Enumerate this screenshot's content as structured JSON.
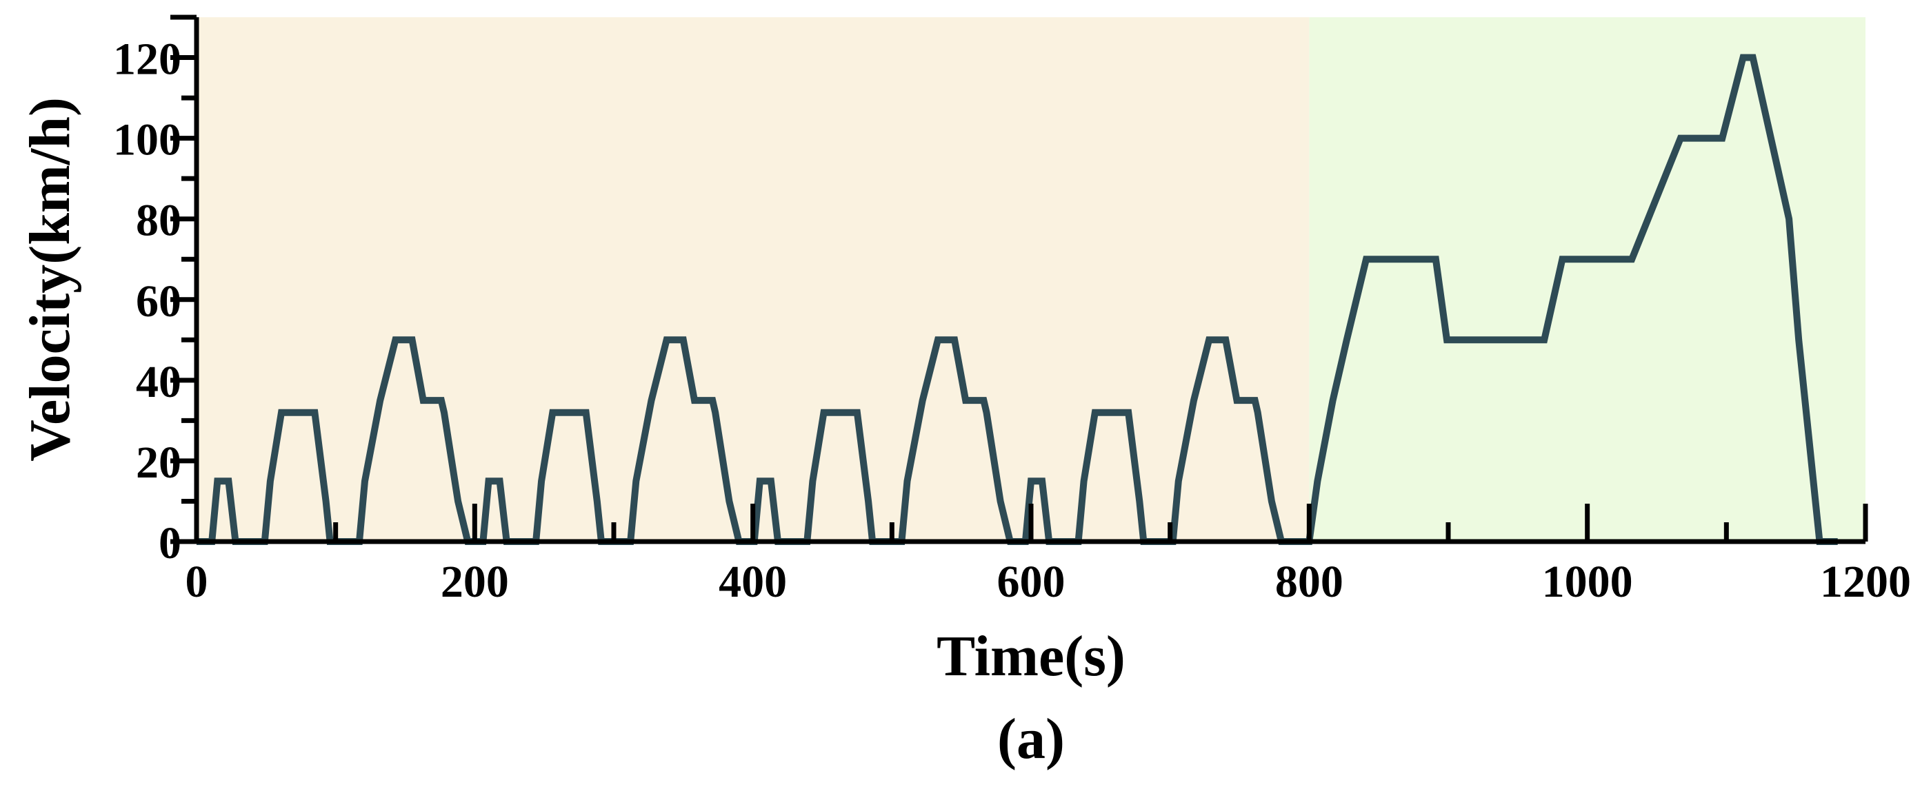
{
  "chart_data": {
    "type": "line",
    "xlabel": "Time(s)",
    "ylabel": "Velocity(km/h)",
    "caption": "(a)",
    "xlim": [
      0,
      1200
    ],
    "ylim": [
      0,
      130
    ],
    "xticks": [
      0,
      200,
      400,
      600,
      800,
      1000,
      1200
    ],
    "yticks": [
      0,
      20,
      40,
      60,
      80,
      100,
      120
    ],
    "grid": false,
    "regions": [
      {
        "x0": 0,
        "x1": 800,
        "color": "#faf2e0"
      },
      {
        "x0": 800,
        "x1": 1200,
        "color": "#edfae0"
      }
    ],
    "line_color": "#2e4b55",
    "series": [
      {
        "x": [
          0,
          11,
          15,
          23,
          28,
          49,
          53,
          61,
          85,
          93,
          96,
          117,
          121,
          132,
          143,
          155,
          163,
          176,
          178,
          188,
          195,
          206,
          210,
          218,
          223,
          244,
          248,
          256,
          280,
          288,
          291,
          312,
          316,
          327,
          338,
          350,
          358,
          371,
          373,
          383,
          390,
          401,
          405,
          413,
          418,
          439,
          443,
          451,
          475,
          483,
          486,
          507,
          511,
          522,
          533,
          545,
          553,
          566,
          568,
          578,
          585,
          596,
          600,
          608,
          613,
          634,
          638,
          646,
          670,
          678,
          681,
          702,
          706,
          717,
          728,
          740,
          748,
          761,
          763,
          773,
          780,
          800,
          806,
          817,
          827,
          841,
          891,
          899,
          969,
          982,
          1032,
          1067,
          1097,
          1112,
          1119,
          1145,
          1152,
          1167,
          1180
        ],
        "y": [
          0,
          0,
          15,
          15,
          0,
          0,
          15,
          32,
          32,
          10,
          0,
          0,
          15,
          35,
          50,
          50,
          35,
          35,
          32,
          10,
          0,
          0,
          15,
          15,
          0,
          0,
          15,
          32,
          32,
          10,
          0,
          0,
          15,
          35,
          50,
          50,
          35,
          35,
          32,
          10,
          0,
          0,
          15,
          15,
          0,
          0,
          15,
          32,
          32,
          10,
          0,
          0,
          15,
          35,
          50,
          50,
          35,
          35,
          32,
          10,
          0,
          0,
          15,
          15,
          0,
          0,
          15,
          32,
          32,
          10,
          0,
          0,
          15,
          35,
          50,
          50,
          35,
          35,
          32,
          10,
          0,
          0,
          15,
          35,
          50,
          70,
          70,
          50,
          50,
          70,
          70,
          100,
          100,
          120,
          120,
          80,
          50,
          0,
          0
        ]
      }
    ]
  }
}
